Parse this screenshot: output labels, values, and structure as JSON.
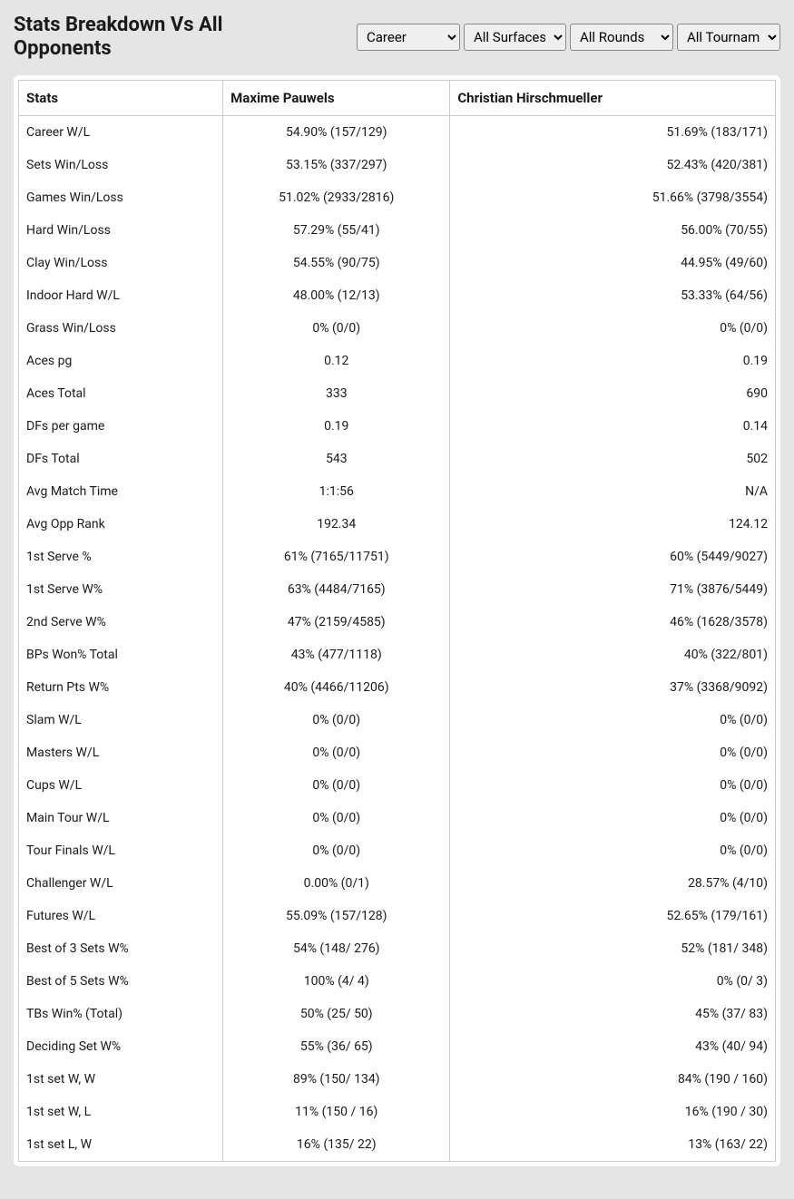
{
  "title": "Stats Breakdown Vs All Opponents",
  "filters": {
    "career": "Career",
    "surface": "All Surfaces",
    "round": "All Rounds",
    "tournament": "All Tournaments"
  },
  "table": {
    "headers": {
      "stats": "Stats",
      "player1": "Maxime Pauwels",
      "player2": "Christian Hirschmueller"
    },
    "rows": [
      {
        "stat": "Career W/L",
        "p1": "54.90% (157/129)",
        "p2": "51.69% (183/171)"
      },
      {
        "stat": "Sets Win/Loss",
        "p1": "53.15% (337/297)",
        "p2": "52.43% (420/381)"
      },
      {
        "stat": "Games Win/Loss",
        "p1": "51.02% (2933/2816)",
        "p2": "51.66% (3798/3554)"
      },
      {
        "stat": "Hard Win/Loss",
        "p1": "57.29% (55/41)",
        "p2": "56.00% (70/55)"
      },
      {
        "stat": "Clay Win/Loss",
        "p1": "54.55% (90/75)",
        "p2": "44.95% (49/60)"
      },
      {
        "stat": "Indoor Hard W/L",
        "p1": "48.00% (12/13)",
        "p2": "53.33% (64/56)"
      },
      {
        "stat": "Grass Win/Loss",
        "p1": "0% (0/0)",
        "p2": "0% (0/0)"
      },
      {
        "stat": "Aces pg",
        "p1": "0.12",
        "p2": "0.19"
      },
      {
        "stat": "Aces Total",
        "p1": "333",
        "p2": "690"
      },
      {
        "stat": "DFs per game",
        "p1": "0.19",
        "p2": "0.14"
      },
      {
        "stat": "DFs Total",
        "p1": "543",
        "p2": "502"
      },
      {
        "stat": "Avg Match Time",
        "p1": "1:1:56",
        "p2": "N/A"
      },
      {
        "stat": "Avg Opp Rank",
        "p1": "192.34",
        "p2": "124.12"
      },
      {
        "stat": "1st Serve %",
        "p1": "61% (7165/11751)",
        "p2": "60% (5449/9027)"
      },
      {
        "stat": "1st Serve W%",
        "p1": "63% (4484/7165)",
        "p2": "71% (3876/5449)"
      },
      {
        "stat": "2nd Serve W%",
        "p1": "47% (2159/4585)",
        "p2": "46% (1628/3578)"
      },
      {
        "stat": "BPs Won% Total",
        "p1": "43% (477/1118)",
        "p2": "40% (322/801)"
      },
      {
        "stat": "Return Pts W%",
        "p1": "40% (4466/11206)",
        "p2": "37% (3368/9092)"
      },
      {
        "stat": "Slam W/L",
        "p1": "0% (0/0)",
        "p2": "0% (0/0)"
      },
      {
        "stat": "Masters W/L",
        "p1": "0% (0/0)",
        "p2": "0% (0/0)"
      },
      {
        "stat": "Cups W/L",
        "p1": "0% (0/0)",
        "p2": "0% (0/0)"
      },
      {
        "stat": "Main Tour W/L",
        "p1": "0% (0/0)",
        "p2": "0% (0/0)"
      },
      {
        "stat": "Tour Finals W/L",
        "p1": "0% (0/0)",
        "p2": "0% (0/0)"
      },
      {
        "stat": "Challenger W/L",
        "p1": "0.00% (0/1)",
        "p2": "28.57% (4/10)"
      },
      {
        "stat": "Futures W/L",
        "p1": "55.09% (157/128)",
        "p2": "52.65% (179/161)"
      },
      {
        "stat": "Best of 3 Sets W%",
        "p1": "54% (148/ 276)",
        "p2": "52% (181/ 348)"
      },
      {
        "stat": "Best of 5 Sets W%",
        "p1": "100% (4/ 4)",
        "p2": "0% (0/ 3)"
      },
      {
        "stat": "TBs Win% (Total)",
        "p1": "50% (25/ 50)",
        "p2": "45% (37/ 83)"
      },
      {
        "stat": "Deciding Set W%",
        "p1": "55% (36/ 65)",
        "p2": "43% (40/ 94)"
      },
      {
        "stat": "1st set W, W",
        "p1": "89% (150/ 134)",
        "p2": "84% (190 / 160)"
      },
      {
        "stat": "1st set W, L",
        "p1": "11% (150 / 16)",
        "p2": "16% (190 / 30)"
      },
      {
        "stat": "1st set L, W",
        "p1": "16% (135/ 22)",
        "p2": "13% (163/ 22)"
      }
    ]
  }
}
